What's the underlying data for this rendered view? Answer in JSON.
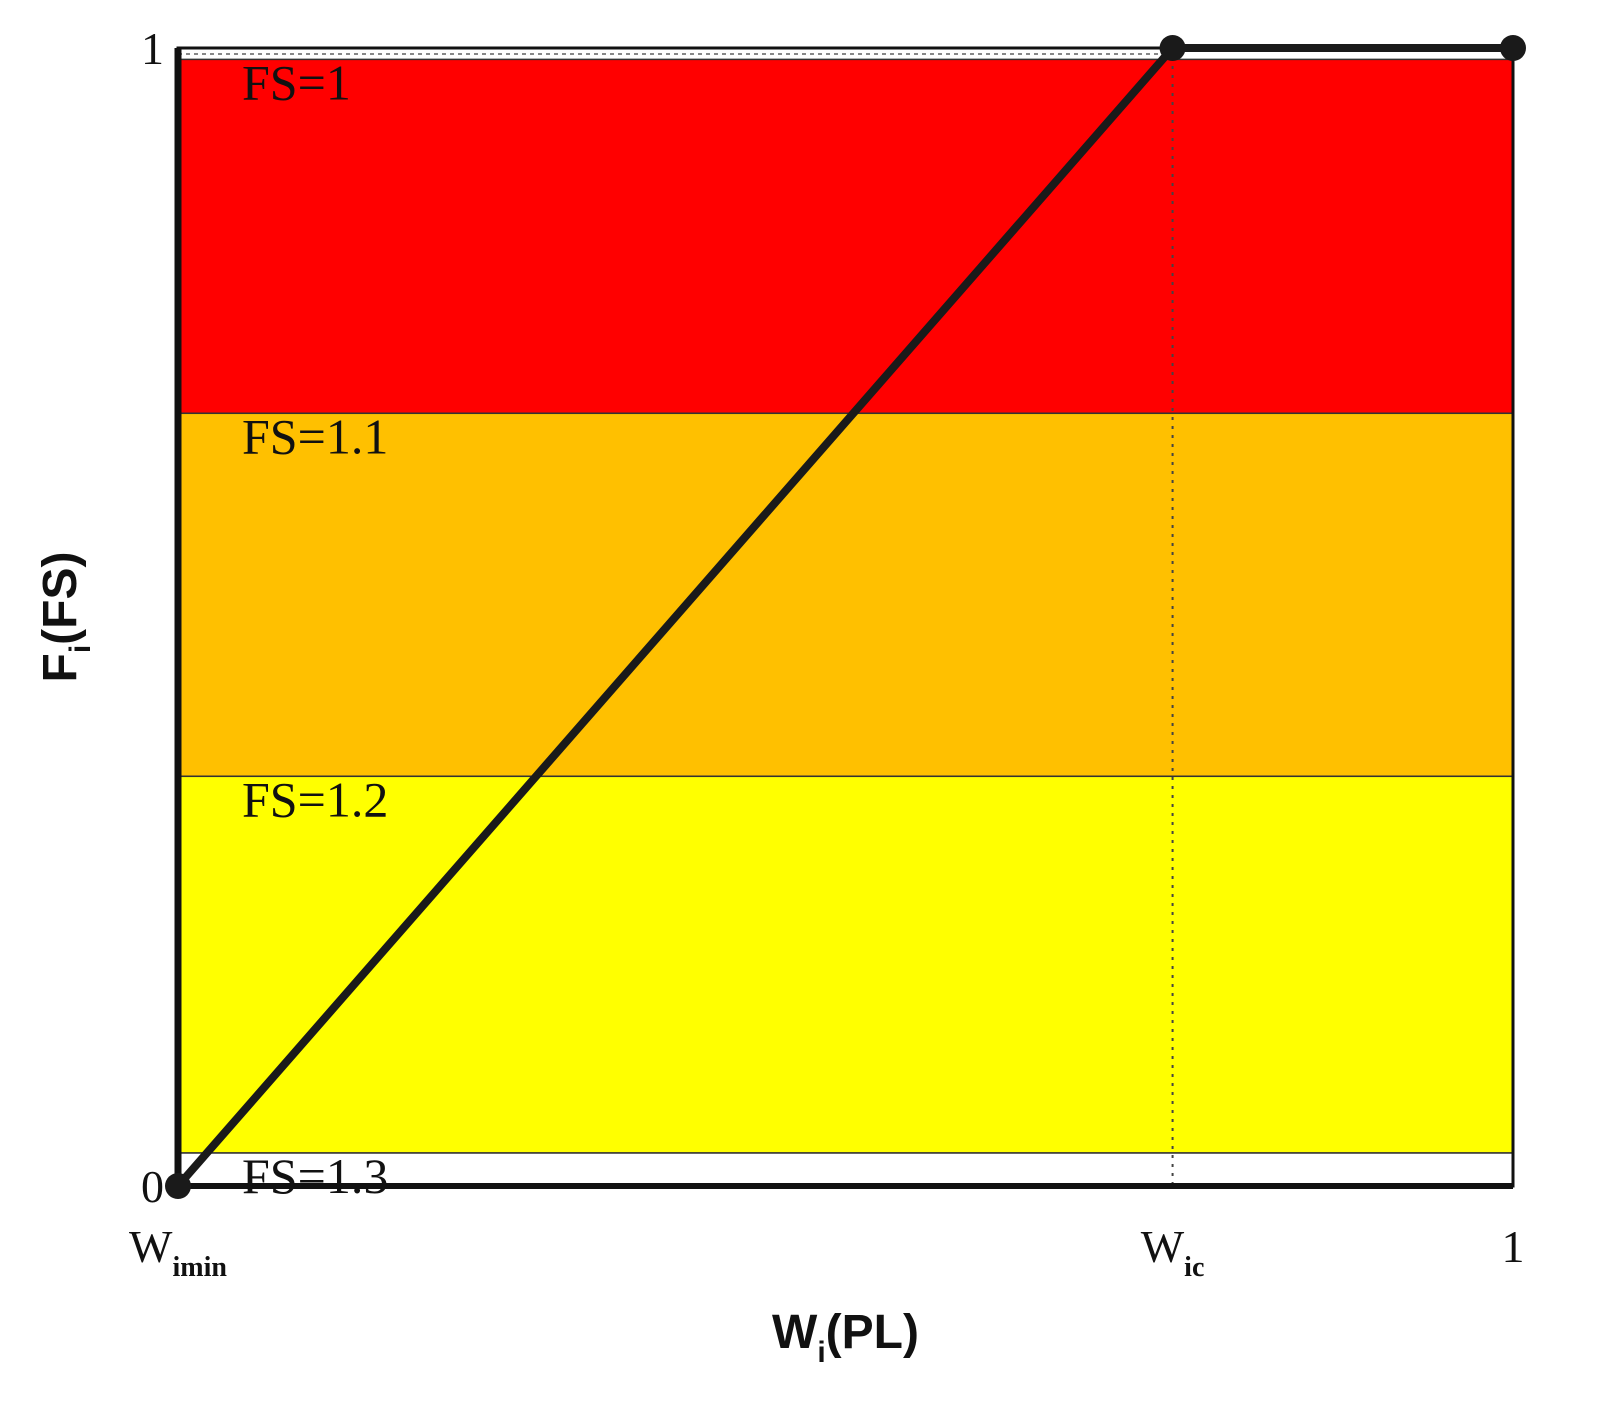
{
  "chart_data": {
    "type": "line",
    "xlabel": {
      "main": "W",
      "sub": "i",
      "rest": "(PL)"
    },
    "ylabel": {
      "main": "F",
      "sub": "i",
      "rest": "(FS)"
    },
    "xlim": [
      0,
      1
    ],
    "ylim": [
      0,
      1
    ],
    "x_ticks": [
      {
        "value": 0,
        "main": "W",
        "sub": "imin"
      },
      {
        "value": 0.745,
        "main": "W",
        "sub": "ic"
      },
      {
        "value": 1,
        "main": "1",
        "sub": ""
      }
    ],
    "y_ticks": [
      {
        "value": 0,
        "label": "0"
      },
      {
        "value": 1,
        "label": "1"
      }
    ],
    "bands": [
      {
        "from": 0.679,
        "to": 0.99,
        "color": "#ff0000",
        "label": "FS=1"
      },
      {
        "from": 0.36,
        "to": 0.679,
        "color": "#ffc000",
        "label": "FS=1.1"
      },
      {
        "from": 0.029,
        "to": 0.36,
        "color": "#ffff00",
        "label": "FS=1.2"
      },
      {
        "from": 0.0,
        "to": 0.029,
        "color": "#ffffff",
        "label": "FS=1.3"
      }
    ],
    "series": [
      {
        "x": [
          0,
          0.745,
          1
        ],
        "y": [
          0,
          1,
          1
        ],
        "color": "#1a1a1a"
      }
    ],
    "reference_line_x": 0.745,
    "grid": false
  }
}
